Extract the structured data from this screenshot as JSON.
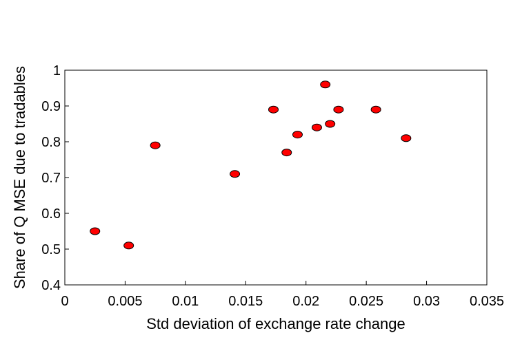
{
  "chart_data": {
    "type": "scatter",
    "title": "",
    "xlabel": "Std deviation of exchange rate change",
    "ylabel": "Share of Q MSE due to tradables",
    "xlim": [
      0,
      0.035
    ],
    "ylim": [
      0.4,
      1.0
    ],
    "x_ticks": [
      "0",
      "0.005",
      "0.01",
      "0.015",
      "0.02",
      "0.025",
      "0.03",
      "0.035"
    ],
    "y_ticks": [
      "0.4",
      "0.5",
      "0.6",
      "0.7",
      "0.8",
      "0.9",
      "1"
    ],
    "grid": false,
    "marker_color": "#ff0000",
    "marker_edge_color": "#000000",
    "points": [
      {
        "x": 0.0025,
        "y": 0.55
      },
      {
        "x": 0.0053,
        "y": 0.51
      },
      {
        "x": 0.0075,
        "y": 0.79
      },
      {
        "x": 0.0141,
        "y": 0.71
      },
      {
        "x": 0.0173,
        "y": 0.89
      },
      {
        "x": 0.0184,
        "y": 0.77
      },
      {
        "x": 0.0193,
        "y": 0.82
      },
      {
        "x": 0.0209,
        "y": 0.84
      },
      {
        "x": 0.0216,
        "y": 0.96
      },
      {
        "x": 0.022,
        "y": 0.85
      },
      {
        "x": 0.0227,
        "y": 0.89
      },
      {
        "x": 0.0258,
        "y": 0.89
      },
      {
        "x": 0.0283,
        "y": 0.81
      }
    ]
  }
}
